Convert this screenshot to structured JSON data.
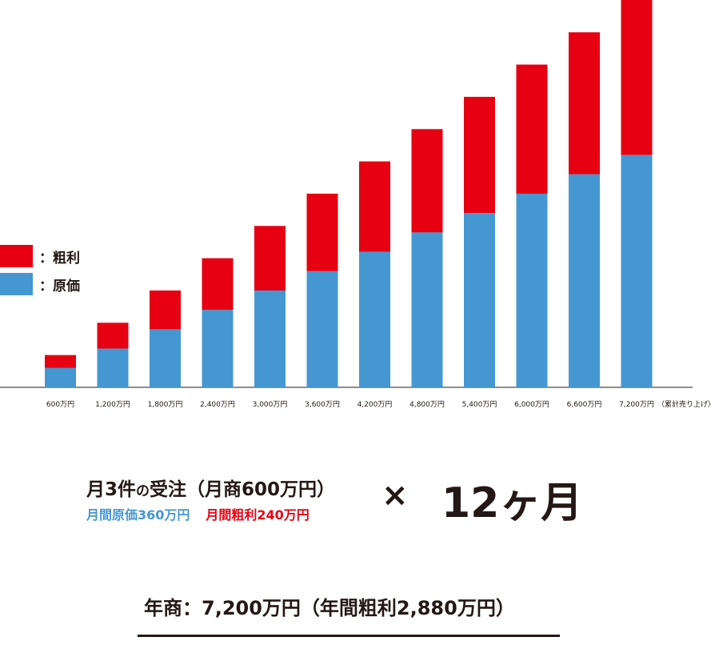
{
  "chart_data": {
    "type": "bar",
    "stacked": true,
    "categories": [
      "600万円",
      "1,200万円",
      "1,800万円",
      "2,400万円",
      "3,000万円",
      "3,600万円",
      "4,200万円",
      "4,800万円",
      "5,400万円",
      "6,000万円",
      "6,600万円",
      "7,200万円"
    ],
    "x_suffix": "（累計売り上げ）",
    "series": [
      {
        "name": "原価",
        "color": "#4597d2",
        "values": [
          360,
          720,
          1080,
          1440,
          1800,
          2160,
          2520,
          2880,
          3240,
          3600,
          3960,
          4320
        ]
      },
      {
        "name": "粗利",
        "color": "#e60012",
        "values": [
          240,
          480,
          720,
          960,
          1200,
          1440,
          1680,
          1920,
          2160,
          2400,
          2640,
          2880
        ]
      }
    ],
    "ylim": [
      0,
      7200
    ],
    "grid": false,
    "legend": "left"
  },
  "legend": [
    {
      "label": "：粗利",
      "color": "#e60012"
    },
    {
      "label": "：原価",
      "color": "#4597d2"
    }
  ],
  "summary": {
    "line1_a": "月3件",
    "line1_b": "の",
    "line1_c": "受注（月商600万円）",
    "monthly_cost": "月間原価360万円",
    "monthly_profit": "月間粗利240万円",
    "times": "×",
    "months": "12ヶ月",
    "annual": "年商：7,200万円（年間粗利2,880万円）"
  }
}
